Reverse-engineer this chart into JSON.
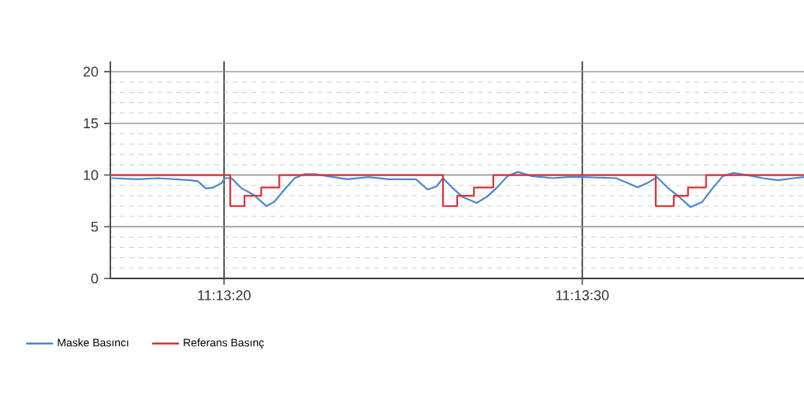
{
  "chart_data": {
    "type": "line",
    "series": [
      {
        "name": "Maske Basıncı",
        "color": "#4a86d4",
        "x": [
          11.22135,
          11.22155,
          11.22171,
          11.22196,
          11.22202,
          11.22208,
          11.22214,
          11.2222,
          11.22223,
          11.22228,
          11.22236,
          11.22245,
          11.22255,
          11.22261,
          11.22269,
          11.22277,
          11.22285,
          11.22293,
          11.22302,
          11.22318,
          11.22334,
          11.2235,
          11.22367,
          11.22371,
          11.2238,
          11.22387,
          11.22392,
          11.22399,
          11.22407,
          11.22418,
          11.22426,
          11.22434,
          11.22442,
          11.2245,
          11.22461,
          11.22477,
          11.22489,
          11.225,
          11.22526,
          11.22534,
          11.22543,
          11.2255,
          11.22558,
          11.22566,
          11.22575,
          11.22584,
          11.22593,
          11.22601,
          11.22609,
          11.22617,
          11.22628,
          11.2264,
          11.22652,
          11.22664,
          11.22672
        ],
        "values": [
          9.7,
          9.6,
          9.7,
          9.5,
          9.4,
          8.7,
          8.8,
          9.2,
          9.7,
          9.7,
          8.7,
          8.1,
          7,
          7.4,
          8.6,
          9.7,
          10.1,
          10.1,
          9.9,
          9.6,
          9.8,
          9.6,
          9.6,
          9.6,
          8.6,
          8.9,
          9.7,
          8.8,
          7.9,
          7.3,
          7.9,
          8.8,
          9.9,
          10.3,
          9.9,
          9.7,
          9.8,
          9.8,
          9.7,
          9.3,
          8.8,
          9.2,
          9.8,
          8.8,
          7.9,
          6.9,
          7.4,
          8.7,
          9.9,
          10.2,
          10,
          9.7,
          9.5,
          9.7,
          9.8
        ]
      },
      {
        "name": "Referans Basınç",
        "color": "#e03030",
        "type": "step",
        "x": [
          11.22134,
          11.22227,
          11.22238,
          11.22251,
          11.22265,
          11.22392,
          11.22403,
          11.22416,
          11.22431,
          11.22557,
          11.22571,
          11.22582,
          11.22596,
          11.22672
        ],
        "values": [
          10,
          7,
          8,
          8.8,
          10,
          7,
          8,
          8.8,
          10,
          7,
          8,
          8.8,
          10,
          10
        ]
      }
    ],
    "xlim": [
      11.22134,
      11.22672
    ],
    "xticks": [
      {
        "value": 11.222222,
        "label": "11:13:20"
      },
      {
        "value": 11.225,
        "label": "11:13:30"
      }
    ],
    "ylim": [
      0,
      21
    ],
    "yticks": [
      0,
      5,
      10,
      15,
      20
    ],
    "grid": true,
    "legend": "bottom left"
  }
}
